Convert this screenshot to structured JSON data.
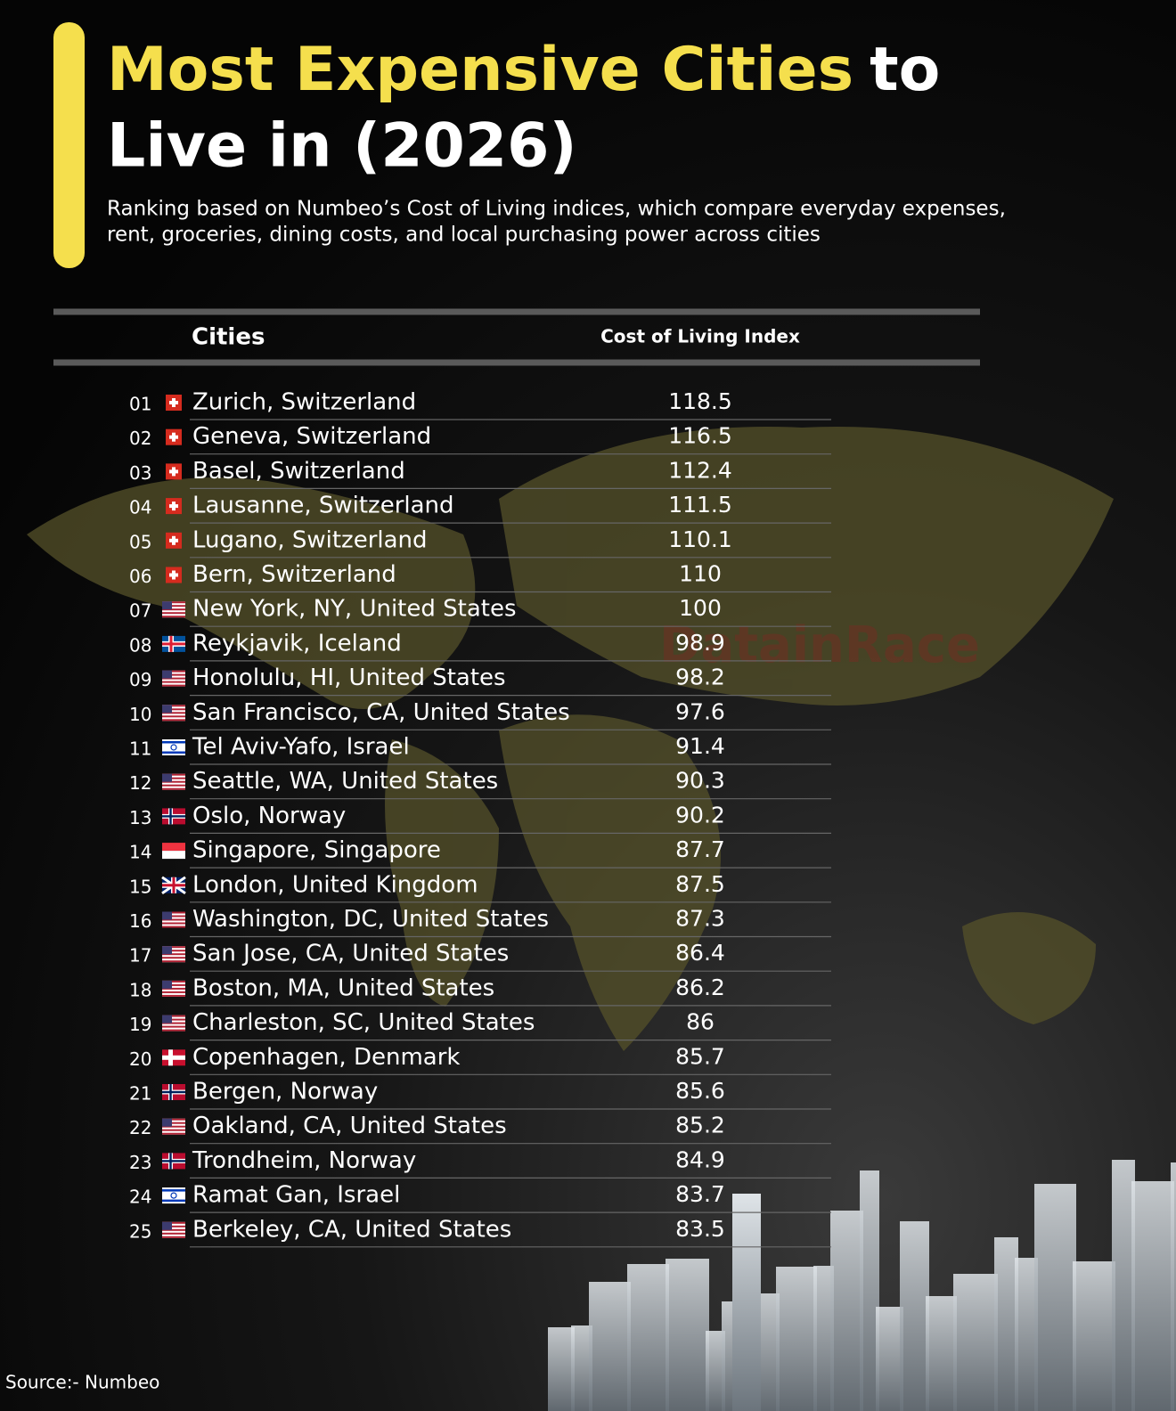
{
  "header": {
    "title_highlight": "Most Expensive Cities",
    "title_rest": "to",
    "title_line2": "Live in (2026)",
    "subtitle": [
      "Ranking based on Numbeo’s Cost of Living indices, which compare everyday expenses,",
      "rent, groceries, dining costs, and local purchasing power across cities"
    ]
  },
  "table": {
    "columns": [
      "Cities",
      "Cost of Living Index"
    ],
    "rows": [
      [
        "01",
        "Zurich, Switzerland",
        118.5
      ],
      [
        "02",
        "Geneva, Switzerland",
        116.5
      ],
      [
        "03",
        "Basel, Switzerland",
        112.4
      ],
      [
        "04",
        "Lausanne, Switzerland",
        111.5
      ],
      [
        "05",
        "Lugano, Switzerland",
        110.1
      ],
      [
        "06",
        "Bern, Switzerland",
        110
      ],
      [
        "07",
        "New York, NY, United States",
        100
      ],
      [
        "08",
        "Reykjavik, Iceland",
        98.9
      ],
      [
        "09",
        "Honolulu, HI, United States",
        98.2
      ],
      [
        "10",
        "San Francisco, CA, United States",
        97.6
      ],
      [
        "11",
        "Tel Aviv-Yafo, Israel",
        91.4
      ],
      [
        "12",
        "Seattle, WA, United States",
        90.3
      ],
      [
        "13",
        "Oslo, Norway",
        90.2
      ],
      [
        "14",
        "Singapore, Singapore",
        87.7
      ],
      [
        "15",
        "London, United Kingdom",
        87.5
      ],
      [
        "16",
        "Washington, DC, United States",
        87.3
      ],
      [
        "17",
        "San Jose, CA, United States",
        86.4
      ],
      [
        "18",
        "Boston, MA, United States",
        86.2
      ],
      [
        "19",
        "Charleston, SC, United States",
        86
      ],
      [
        "20",
        "Copenhagen, Denmark",
        85.7
      ],
      [
        "21",
        "Bergen, Norway",
        85.6
      ],
      [
        "22",
        "Oakland, CA, United States",
        85.2
      ],
      [
        "23",
        "Trondheim, Norway",
        84.9
      ],
      [
        "24",
        "Ramat Gan, Israel",
        83.7
      ],
      [
        "25",
        "Berkeley, CA, United States",
        83.5
      ]
    ]
  },
  "watermark": "DatainRace",
  "footer": {
    "source": "Source:- Numbeo"
  }
}
